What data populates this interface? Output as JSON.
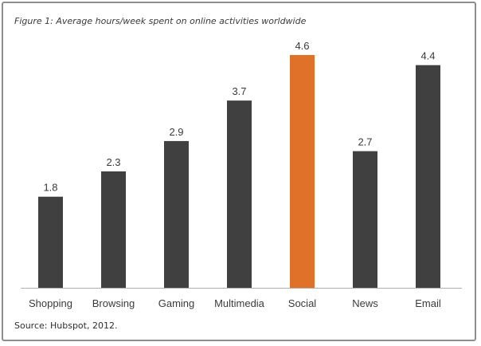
{
  "chart_data": {
    "type": "bar",
    "title": "Figure 1: Average hours/week spent on online activities worldwide",
    "categories": [
      "Shopping",
      "Browsing",
      "Gaming",
      "Multimedia",
      "Social",
      "News",
      "Email"
    ],
    "values": [
      1.8,
      2.3,
      2.9,
      3.7,
      4.6,
      2.7,
      4.4
    ],
    "value_labels": [
      "1.8",
      "2.3",
      "2.9",
      "3.7",
      "4.6",
      "2.7",
      "4.4"
    ],
    "highlight_category": "Social",
    "xlabel": "",
    "ylabel": "",
    "ylim": [
      0,
      4.6
    ],
    "grid": false,
    "legend": "none",
    "colors": {
      "bar": "#404040",
      "highlight": "#e07128",
      "axis": "#b0b0b0"
    },
    "source": "Source: Hubspot, 2012."
  }
}
